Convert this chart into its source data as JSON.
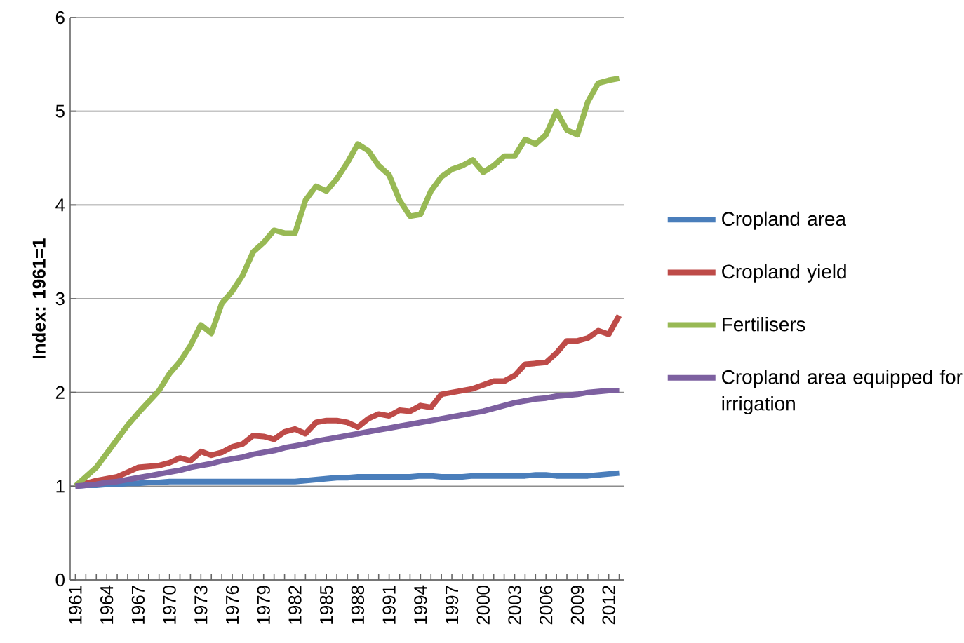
{
  "chart_data": {
    "type": "line",
    "ylabel": "Index: 1961=1",
    "grid": "y",
    "legend": "right",
    "ylim": [
      0,
      6
    ],
    "yticks": [
      0,
      1,
      2,
      3,
      4,
      5,
      6
    ],
    "categories": [
      "1961",
      null,
      null,
      "1964",
      null,
      null,
      "1967",
      null,
      null,
      "1970",
      null,
      null,
      "1973",
      null,
      null,
      "1976",
      null,
      null,
      "1979",
      null,
      null,
      "1982",
      null,
      null,
      "1985",
      null,
      null,
      "1988",
      null,
      null,
      "1991",
      null,
      null,
      "1994",
      null,
      null,
      "1997",
      null,
      null,
      "2000",
      null,
      null,
      "2003",
      null,
      null,
      "2006",
      null,
      null,
      "2009",
      null,
      null,
      "2012",
      null
    ],
    "series": [
      {
        "name": "Cropland area",
        "color": "#4a7ebb",
        "values": [
          1.0,
          1.01,
          1.01,
          1.02,
          1.02,
          1.03,
          1.03,
          1.04,
          1.04,
          1.05,
          1.05,
          1.05,
          1.05,
          1.05,
          1.05,
          1.05,
          1.05,
          1.05,
          1.05,
          1.05,
          1.05,
          1.05,
          1.06,
          1.07,
          1.08,
          1.09,
          1.09,
          1.1,
          1.1,
          1.1,
          1.1,
          1.1,
          1.1,
          1.11,
          1.11,
          1.1,
          1.1,
          1.1,
          1.11,
          1.11,
          1.11,
          1.11,
          1.11,
          1.11,
          1.12,
          1.12,
          1.11,
          1.11,
          1.11,
          1.11,
          1.12,
          1.13,
          1.14
        ]
      },
      {
        "name": "Cropland yield",
        "color": "#be4b48",
        "values": [
          1.0,
          1.03,
          1.06,
          1.08,
          1.1,
          1.15,
          1.2,
          1.21,
          1.22,
          1.25,
          1.3,
          1.27,
          1.37,
          1.33,
          1.36,
          1.42,
          1.45,
          1.54,
          1.53,
          1.5,
          1.58,
          1.61,
          1.56,
          1.68,
          1.7,
          1.7,
          1.68,
          1.63,
          1.72,
          1.77,
          1.75,
          1.81,
          1.8,
          1.86,
          1.84,
          1.98,
          2.0,
          2.02,
          2.04,
          2.08,
          2.12,
          2.12,
          2.18,
          2.3,
          2.31,
          2.32,
          2.42,
          2.55,
          2.55,
          2.58,
          2.66,
          2.62,
          2.82
        ]
      },
      {
        "name": "Fertilisers",
        "color": "#98b954",
        "values": [
          1.0,
          1.1,
          1.2,
          1.35,
          1.5,
          1.65,
          1.78,
          1.9,
          2.02,
          2.2,
          2.33,
          2.5,
          2.72,
          2.63,
          2.95,
          3.08,
          3.25,
          3.5,
          3.6,
          3.73,
          3.7,
          3.7,
          4.05,
          4.2,
          4.15,
          4.28,
          4.45,
          4.65,
          4.58,
          4.42,
          4.32,
          4.05,
          3.88,
          3.9,
          4.15,
          4.3,
          4.38,
          4.42,
          4.48,
          4.35,
          4.42,
          4.52,
          4.52,
          4.7,
          4.65,
          4.75,
          5.0,
          4.8,
          4.75,
          5.1,
          5.3,
          5.33,
          5.35
        ]
      },
      {
        "name": "Cropland area equipped for irrigation",
        "color": "#7d60a0",
        "values": [
          1.0,
          1.01,
          1.02,
          1.04,
          1.05,
          1.07,
          1.09,
          1.11,
          1.13,
          1.15,
          1.17,
          1.2,
          1.22,
          1.24,
          1.27,
          1.29,
          1.31,
          1.34,
          1.36,
          1.38,
          1.41,
          1.43,
          1.45,
          1.48,
          1.5,
          1.52,
          1.54,
          1.56,
          1.58,
          1.6,
          1.62,
          1.64,
          1.66,
          1.68,
          1.7,
          1.72,
          1.74,
          1.76,
          1.78,
          1.8,
          1.83,
          1.86,
          1.89,
          1.91,
          1.93,
          1.94,
          1.96,
          1.97,
          1.98,
          2.0,
          2.01,
          2.02,
          2.02
        ]
      }
    ]
  }
}
